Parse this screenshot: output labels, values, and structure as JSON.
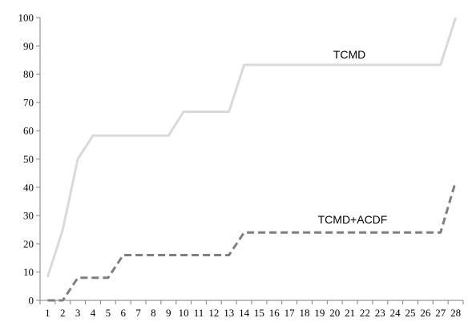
{
  "chart_data": {
    "type": "line",
    "title": "",
    "xlabel": "",
    "ylabel": "",
    "x": [
      1,
      2,
      3,
      4,
      5,
      6,
      7,
      8,
      9,
      10,
      11,
      12,
      13,
      14,
      15,
      16,
      17,
      18,
      19,
      20,
      21,
      22,
      23,
      24,
      25,
      26,
      27,
      28
    ],
    "ylim": [
      0,
      100
    ],
    "yticks": [
      0,
      10,
      20,
      30,
      40,
      50,
      60,
      70,
      80,
      90,
      100
    ],
    "grid": false,
    "legend": "none",
    "series": [
      {
        "name": "TCMD",
        "style": "solid",
        "color": "#d9d9d9",
        "values": [
          8.3,
          25,
          50,
          58.3,
          58.3,
          58.3,
          58.3,
          58.3,
          58.3,
          66.7,
          66.7,
          66.7,
          66.7,
          83.3,
          83.3,
          83.3,
          83.3,
          83.3,
          83.3,
          83.3,
          83.3,
          83.3,
          83.3,
          83.3,
          83.3,
          83.3,
          83.3,
          100
        ]
      },
      {
        "name": "TCMD+ACDF",
        "style": "dashed",
        "color": "#7f7f7f",
        "values": [
          0,
          0,
          8,
          8,
          8,
          16,
          16,
          16,
          16,
          16,
          16,
          16,
          16,
          24,
          24,
          24,
          24,
          24,
          24,
          24,
          24,
          24,
          24,
          24,
          24,
          24,
          24,
          42
        ]
      }
    ]
  }
}
